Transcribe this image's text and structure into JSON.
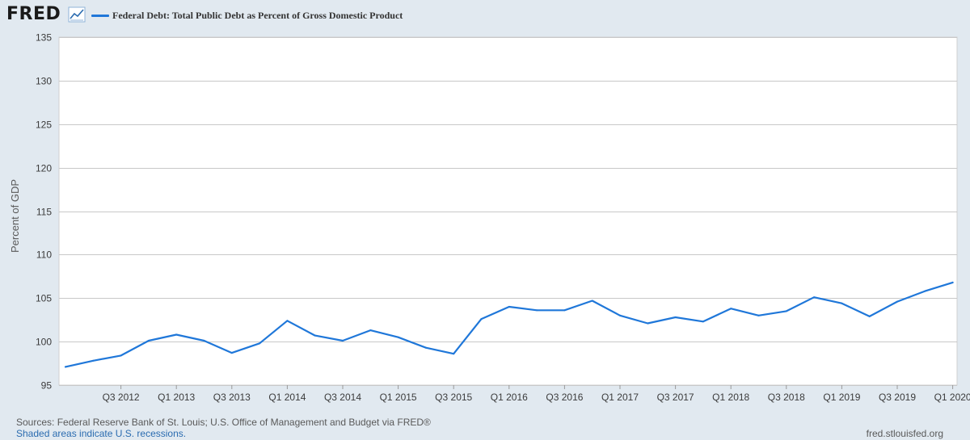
{
  "logo": {
    "text": "FRED",
    "icon": "line-chart-icon"
  },
  "colors": {
    "series": "#1f77d9",
    "background": "#e1e9f0",
    "plot_bg": "#ffffff",
    "grid": "#c8c8c8"
  },
  "footer": {
    "sources": "Sources: Federal Reserve Bank of St. Louis; U.S. Office of Management and Budget via FRED®",
    "recessions": "Shaded areas indicate U.S. recessions.",
    "site": "fred.stlouisfed.org"
  },
  "chart_data": {
    "type": "line",
    "title": "",
    "xlabel": "",
    "ylabel": "Percent of GDP",
    "ylim": [
      95,
      135
    ],
    "yticks": [
      95,
      100,
      105,
      110,
      115,
      120,
      125,
      130,
      135
    ],
    "grid": true,
    "legend_position": "top-left",
    "x": [
      "Q1 2012",
      "Q2 2012",
      "Q3 2012",
      "Q4 2012",
      "Q1 2013",
      "Q2 2013",
      "Q3 2013",
      "Q4 2013",
      "Q1 2014",
      "Q2 2014",
      "Q3 2014",
      "Q4 2014",
      "Q1 2015",
      "Q2 2015",
      "Q3 2015",
      "Q4 2015",
      "Q1 2016",
      "Q2 2016",
      "Q3 2016",
      "Q4 2016",
      "Q1 2017",
      "Q2 2017",
      "Q3 2017",
      "Q4 2017",
      "Q1 2018",
      "Q2 2018",
      "Q3 2018",
      "Q4 2018",
      "Q1 2019",
      "Q2 2019",
      "Q3 2019",
      "Q4 2019",
      "Q1 2020"
    ],
    "xtick_labels": [
      "Q3 2012",
      "Q1 2013",
      "Q3 2013",
      "Q1 2014",
      "Q3 2014",
      "Q1 2015",
      "Q3 2015",
      "Q1 2016",
      "Q3 2016",
      "Q1 2017",
      "Q3 2017",
      "Q1 2018",
      "Q3 2018",
      "Q1 2019",
      "Q3 2019",
      "Q1 2020"
    ],
    "series": [
      {
        "name": "Federal Debt: Total Public Debt as Percent of Gross Domestic Product",
        "color": "#1f77d9",
        "values": [
          97.1,
          97.8,
          98.4,
          100.1,
          100.8,
          100.1,
          98.7,
          99.8,
          102.4,
          100.7,
          100.1,
          101.3,
          100.5,
          99.3,
          98.6,
          102.6,
          104.0,
          103.6,
          103.6,
          104.7,
          103.0,
          102.1,
          102.8,
          102.3,
          103.8,
          103.0,
          103.5,
          105.1,
          104.4,
          102.9,
          104.6,
          105.8,
          106.8
        ]
      }
    ]
  }
}
